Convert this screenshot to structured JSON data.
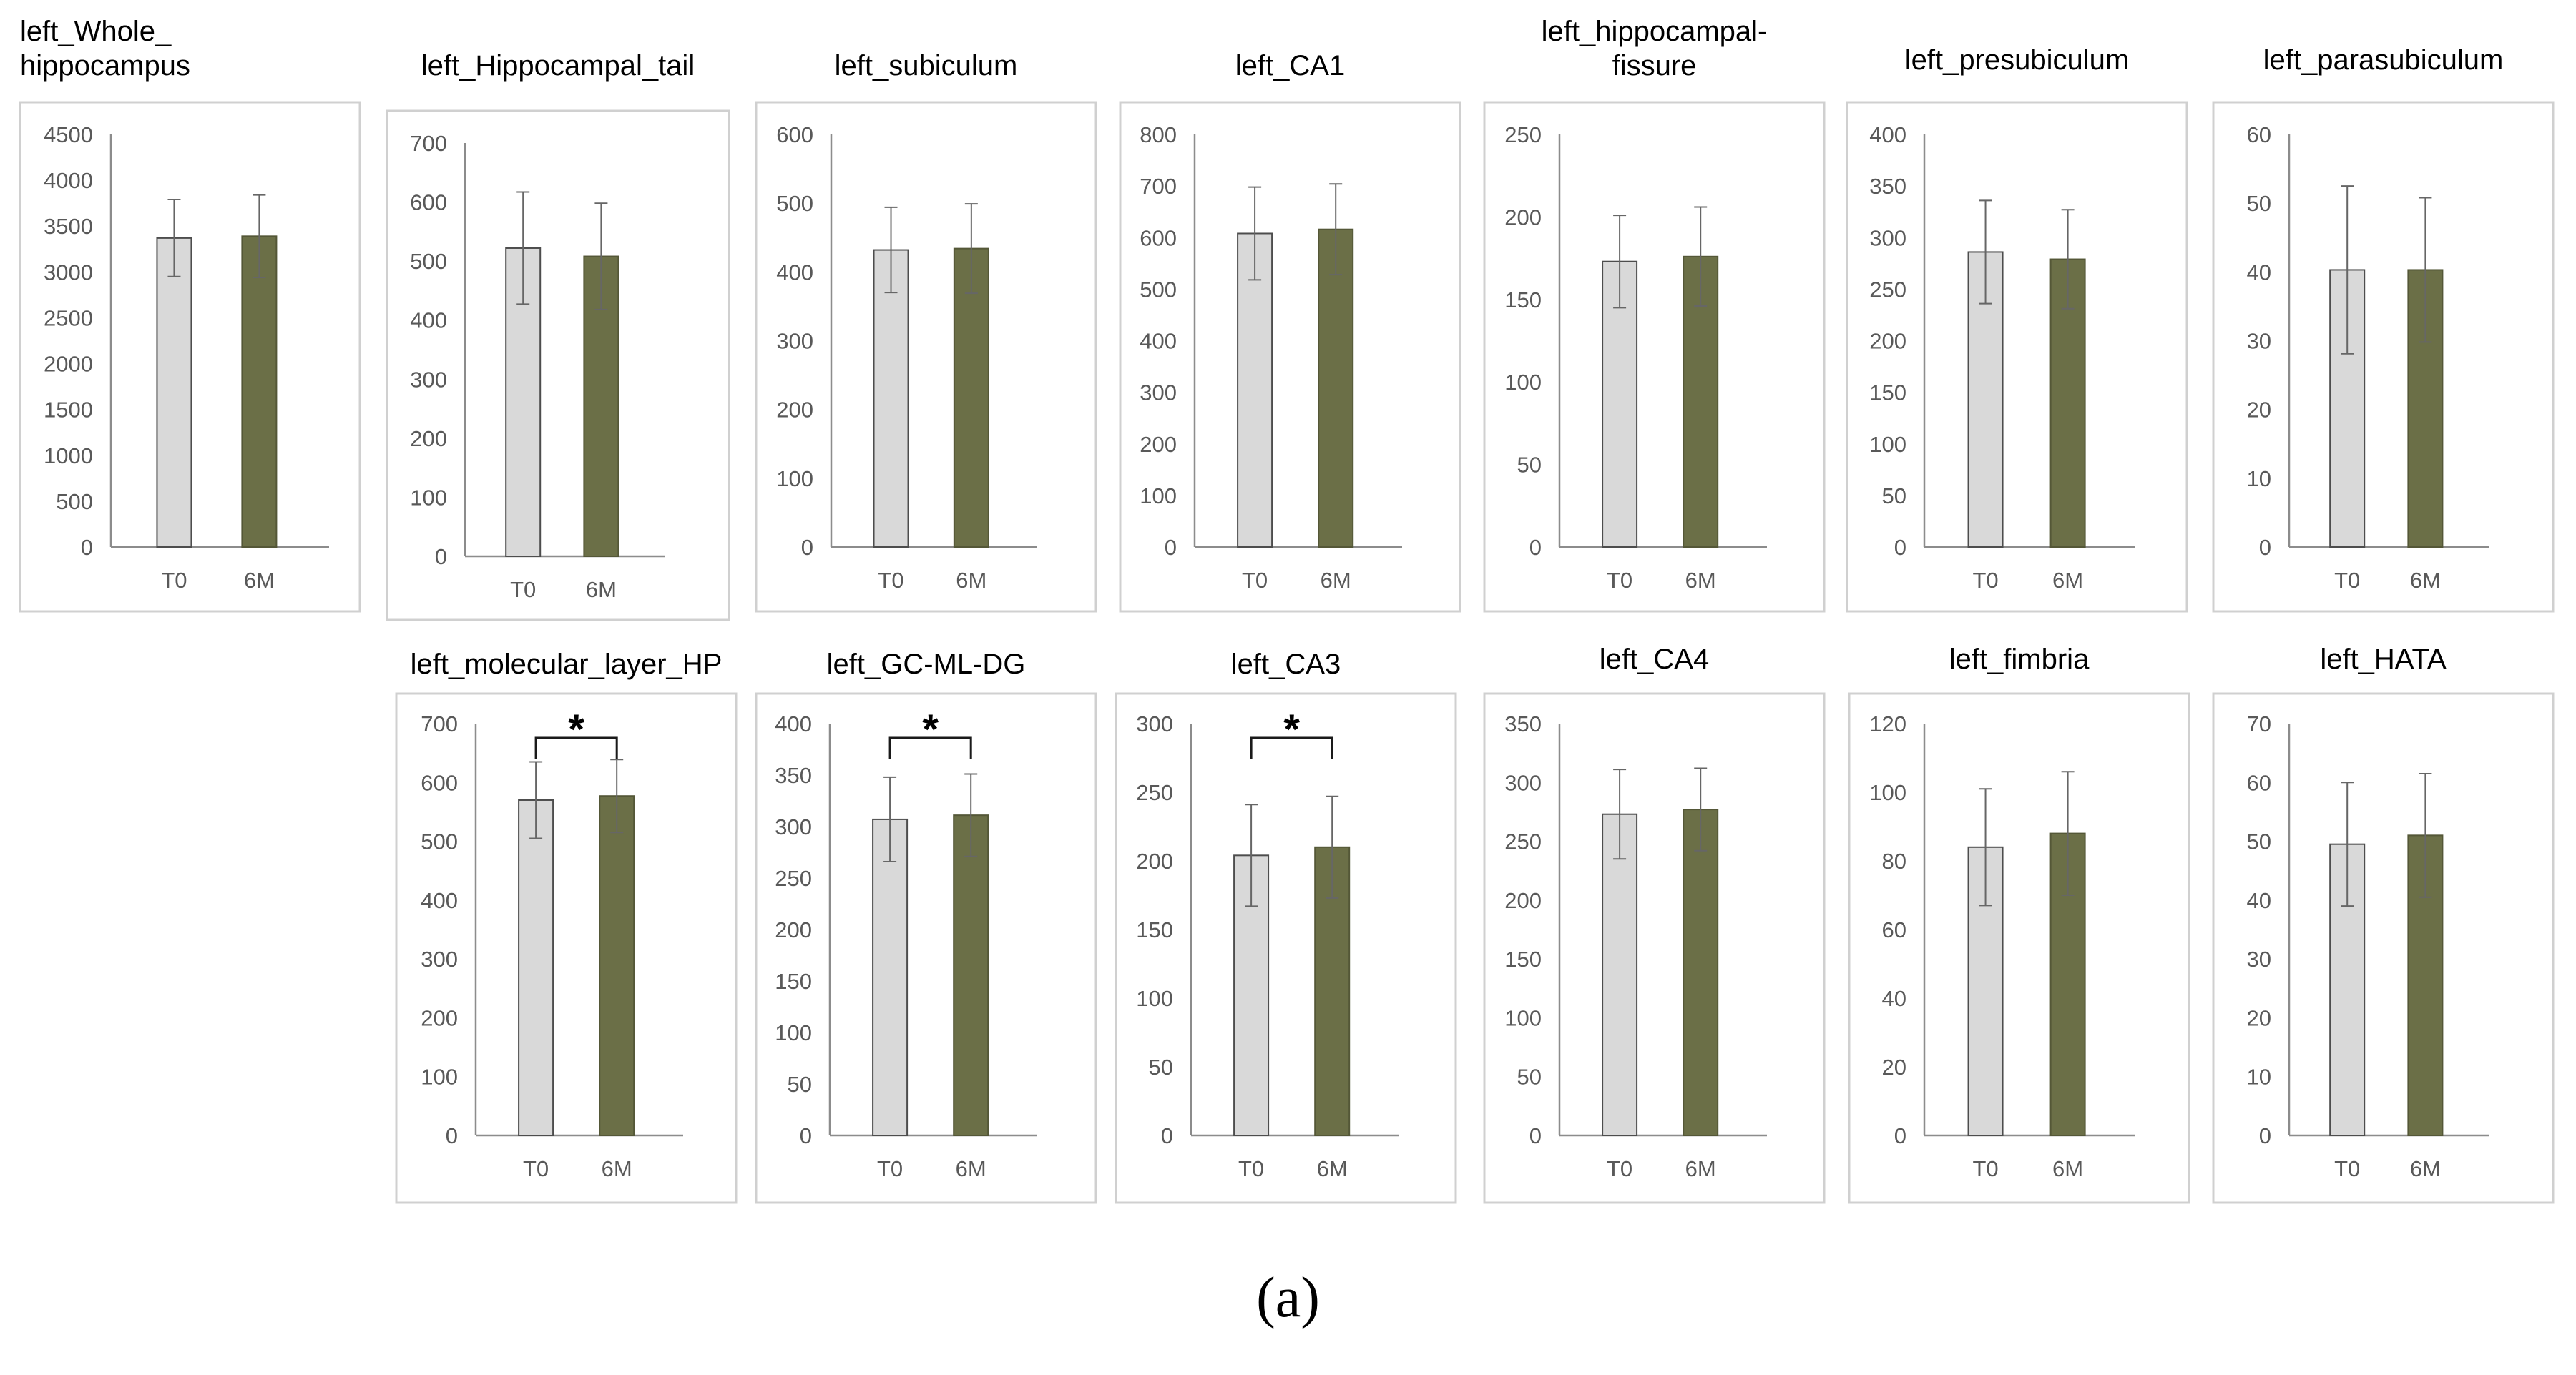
{
  "caption": "(a)",
  "colors": {
    "t0": "#d9d9d9",
    "m6": "#6b6f47",
    "axis": "#8c8c8c",
    "frame": "#d0d0d0",
    "text": "#595959"
  },
  "chart_data": [
    {
      "type": "bar",
      "title": "left_Whole_\nhippocampus",
      "categories": [
        "T0",
        "6M"
      ],
      "values": [
        3370,
        3390
      ],
      "errors": [
        420,
        450
      ],
      "ylim": [
        0,
        4500
      ],
      "yticks": [
        "0",
        "500",
        "1000",
        "1500",
        "2000",
        "2500",
        "3000",
        "3500",
        "4000",
        "4500"
      ],
      "significance": null
    },
    {
      "type": "bar",
      "title": "left_Hippocampal_tail",
      "categories": [
        "T0",
        "6M"
      ],
      "values": [
        522,
        508
      ],
      "errors": [
        95,
        90
      ],
      "ylim": [
        0,
        700
      ],
      "yticks": [
        "0",
        "100",
        "200",
        "300",
        "400",
        "500",
        "600",
        "700"
      ],
      "significance": null
    },
    {
      "type": "bar",
      "title": "left_subiculum",
      "categories": [
        "T0",
        "6M"
      ],
      "values": [
        432,
        434
      ],
      "errors": [
        62,
        65
      ],
      "ylim": [
        0,
        600
      ],
      "yticks": [
        "0",
        "100",
        "200",
        "300",
        "400",
        "500",
        "600"
      ],
      "significance": null
    },
    {
      "type": "bar",
      "title": "left_CA1",
      "categories": [
        "T0",
        "6M"
      ],
      "values": [
        608,
        616
      ],
      "errors": [
        90,
        88
      ],
      "ylim": [
        0,
        800
      ],
      "yticks": [
        "0",
        "100",
        "200",
        "300",
        "400",
        "500",
        "600",
        "700",
        "800"
      ],
      "significance": null
    },
    {
      "type": "bar",
      "title": "left_hippocampal-\nfissure",
      "categories": [
        "T0",
        "6M"
      ],
      "values": [
        173,
        176
      ],
      "errors": [
        28,
        30
      ],
      "ylim": [
        0,
        250
      ],
      "yticks": [
        "0",
        "50",
        "100",
        "150",
        "200",
        "250"
      ],
      "significance": null
    },
    {
      "type": "bar",
      "title": "left_presubiculum",
      "categories": [
        "T0",
        "6M"
      ],
      "values": [
        286,
        279
      ],
      "errors": [
        50,
        48
      ],
      "ylim": [
        0,
        400
      ],
      "yticks": [
        "0",
        "50",
        "100",
        "150",
        "200",
        "250",
        "300",
        "350",
        "400"
      ],
      "significance": null
    },
    {
      "type": "bar",
      "title": "left_parasubiculum",
      "categories": [
        "T0",
        "6M"
      ],
      "values": [
        40.3,
        40.3
      ],
      "errors": [
        12.2,
        10.5
      ],
      "ylim": [
        0,
        60
      ],
      "yticks": [
        "0",
        "10",
        "20",
        "30",
        "40",
        "50",
        "60"
      ],
      "significance": null
    },
    {
      "type": "bar",
      "title": "left_molecular_layer_HP",
      "categories": [
        "T0",
        "6M"
      ],
      "values": [
        570,
        577
      ],
      "errors": [
        65,
        62
      ],
      "ylim": [
        0,
        700
      ],
      "yticks": [
        "0",
        "100",
        "200",
        "300",
        "400",
        "500",
        "600",
        "700"
      ],
      "significance": "*"
    },
    {
      "type": "bar",
      "title": "left_GC-ML-DG",
      "categories": [
        "T0",
        "6M"
      ],
      "values": [
        307,
        311
      ],
      "errors": [
        41,
        40
      ],
      "ylim": [
        0,
        400
      ],
      "yticks": [
        "0",
        "50",
        "100",
        "150",
        "200",
        "250",
        "300",
        "350",
        "400"
      ],
      "significance": "*"
    },
    {
      "type": "bar",
      "title": "left_CA3",
      "categories": [
        "T0",
        "6M"
      ],
      "values": [
        204,
        210
      ],
      "errors": [
        37,
        37
      ],
      "ylim": [
        0,
        300
      ],
      "yticks": [
        "0",
        "50",
        "100",
        "150",
        "200",
        "250",
        "300"
      ],
      "significance": "*"
    },
    {
      "type": "bar",
      "title": "left_CA4",
      "categories": [
        "T0",
        "6M"
      ],
      "values": [
        273,
        277
      ],
      "errors": [
        38,
        35
      ],
      "ylim": [
        0,
        350
      ],
      "yticks": [
        "0",
        "50",
        "100",
        "150",
        "200",
        "250",
        "300",
        "350"
      ],
      "significance": null
    },
    {
      "type": "bar",
      "title": "left_fimbria",
      "categories": [
        "T0",
        "6M"
      ],
      "values": [
        84,
        88
      ],
      "errors": [
        17,
        18
      ],
      "ylim": [
        0,
        120
      ],
      "yticks": [
        "0",
        "20",
        "40",
        "60",
        "80",
        "100",
        "120"
      ],
      "significance": null
    },
    {
      "type": "bar",
      "title": "left_HATA",
      "categories": [
        "T0",
        "6M"
      ],
      "values": [
        49.5,
        51
      ],
      "errors": [
        10.5,
        10.5
      ],
      "ylim": [
        0,
        70
      ],
      "yticks": [
        "0",
        "10",
        "20",
        "30",
        "40",
        "50",
        "60",
        "70"
      ],
      "significance": null
    }
  ]
}
